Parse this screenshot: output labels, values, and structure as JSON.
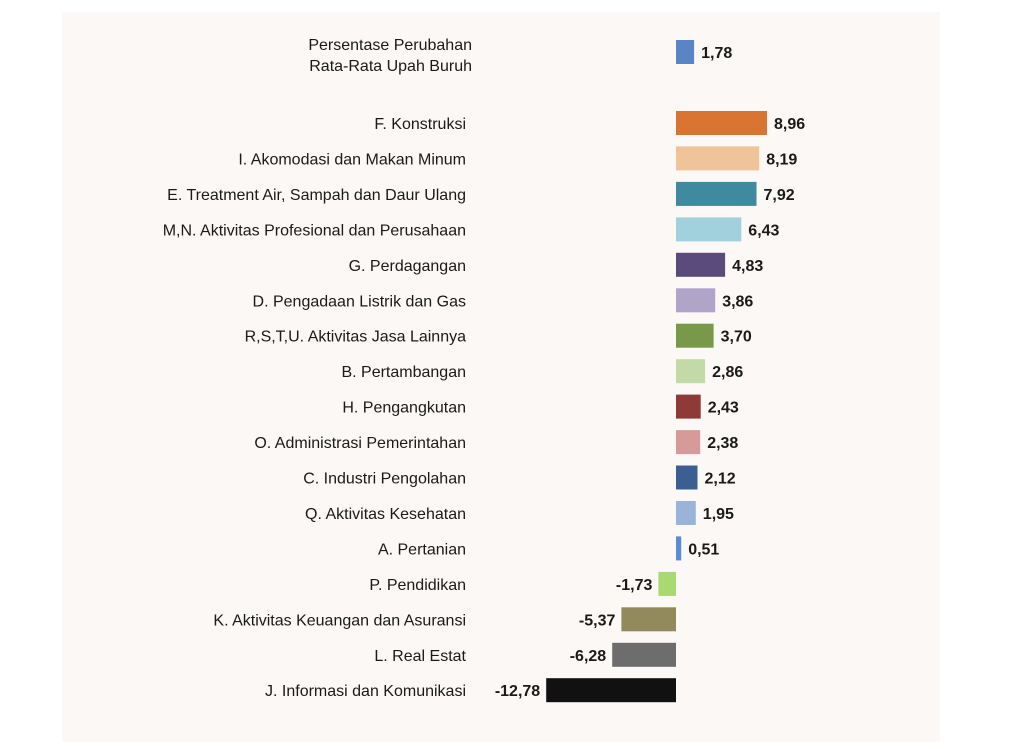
{
  "chart_data": {
    "type": "bar",
    "orientation": "horizontal",
    "title": "",
    "xlabel": "",
    "ylabel": "",
    "grid": false,
    "reference": {
      "label_lines": [
        "Persentase Perubahan",
        "Rata-Rata Upah Buruh"
      ],
      "value": 1.78,
      "value_label": "1,78",
      "color": "#5b84c4"
    },
    "categories": [
      "F. Konstruksi",
      "I. Akomodasi dan Makan Minum",
      "E. Treatment Air, Sampah dan Daur Ulang",
      "M,N. Aktivitas Profesional dan Perusahaan",
      "G. Perdagangan",
      "D. Pengadaan Listrik dan Gas",
      "R,S,T,U. Aktivitas Jasa Lainnya",
      "B. Pertambangan",
      "H. Pengangkutan",
      "O. Administrasi Pemerintahan",
      "C. Industri Pengolahan",
      "Q. Aktivitas Kesehatan",
      "A. Pertanian",
      "P. Pendidikan",
      "K. Aktivitas Keuangan dan Asuransi",
      "L. Real Estat",
      "J. Informasi dan Komunikasi"
    ],
    "values": [
      8.96,
      8.19,
      7.92,
      6.43,
      4.83,
      3.86,
      3.7,
      2.86,
      2.43,
      2.38,
      2.12,
      1.95,
      0.51,
      -1.73,
      -5.37,
      -6.28,
      -12.78
    ],
    "value_labels": [
      "8,96",
      "8,19",
      "7,92",
      "6,43",
      "4,83",
      "3,86",
      "3,70",
      "2,86",
      "2,43",
      "2,38",
      "2,12",
      "1,95",
      "0,51",
      "-1,73",
      "-5,37",
      "-6,28",
      "-12,78"
    ],
    "colors": [
      "#d97431",
      "#f0c49a",
      "#3f8a9e",
      "#a2d1de",
      "#5b4a7c",
      "#b0a4c8",
      "#79994a",
      "#c4d9a8",
      "#8f3a36",
      "#d69b99",
      "#3b5f91",
      "#9ab4d9",
      "#5b8bd0",
      "#a9d971",
      "#928a5c",
      "#6d6d6d",
      "#111111"
    ]
  }
}
